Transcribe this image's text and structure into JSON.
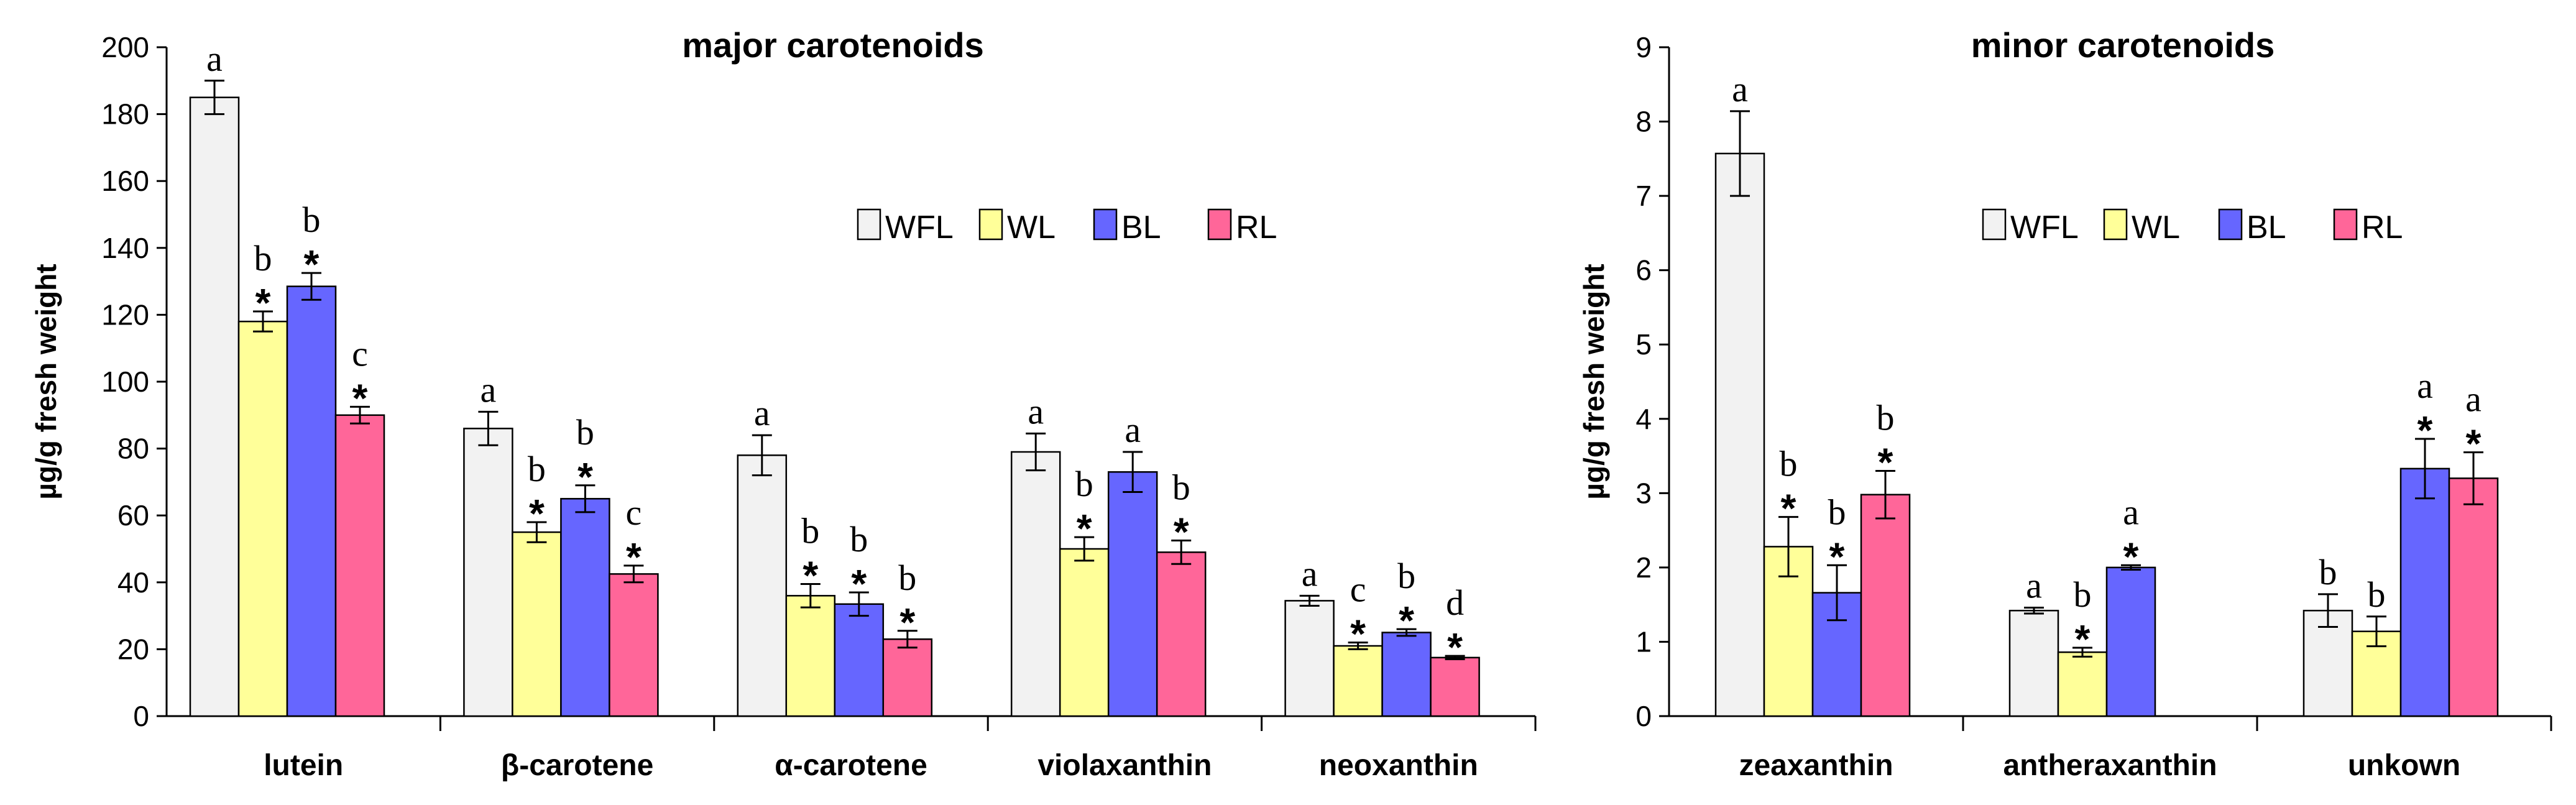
{
  "chart_data": [
    {
      "type": "bar",
      "title": "major carotenoids",
      "xlabel": "",
      "ylabel": "µg/g fresh weight",
      "ylim": [
        0,
        200
      ],
      "yticks": [
        "0",
        "20",
        "40",
        "60",
        "80",
        "100",
        "120",
        "140",
        "160",
        "180",
        "200"
      ],
      "legend_position": "top-right",
      "categories": [
        "lutein",
        "β-carotene",
        "α-carotene",
        "violaxanthin",
        "neoxanthin"
      ],
      "series": [
        {
          "name": "WFL",
          "color": "#f2f2f2",
          "values": [
            185,
            86,
            78,
            79,
            34.5
          ],
          "errors": [
            5,
            5,
            6,
            5.5,
            1.5
          ],
          "letters": [
            "a",
            "a",
            "a",
            "a",
            "a"
          ],
          "stars": [
            "",
            "",
            "",
            "",
            ""
          ]
        },
        {
          "name": "WL",
          "color": "#ffff99",
          "values": [
            118,
            55,
            36,
            50,
            21
          ],
          "errors": [
            3,
            3,
            3.5,
            3.5,
            1
          ],
          "letters": [
            "b",
            "b",
            "b",
            "b",
            "c"
          ],
          "stars": [
            "*",
            "*",
            "*",
            "*",
            "*"
          ]
        },
        {
          "name": "BL",
          "color": "#6666ff",
          "values": [
            128.5,
            65,
            33.5,
            73,
            25
          ],
          "errors": [
            4,
            4,
            3.5,
            6,
            1
          ],
          "letters": [
            "b",
            "b",
            "b",
            "a",
            "b"
          ],
          "stars": [
            "*",
            "*",
            "*",
            "",
            "*"
          ]
        },
        {
          "name": "RL",
          "color": "#ff6699",
          "values": [
            90,
            42.5,
            23,
            49,
            17.5
          ],
          "errors": [
            2.5,
            2.5,
            2.5,
            3.5,
            0.5
          ],
          "letters": [
            "c",
            "c",
            "b",
            "b",
            "d"
          ],
          "stars": [
            "*",
            "*",
            "*",
            "*",
            "*"
          ]
        }
      ]
    },
    {
      "type": "bar",
      "title": "minor carotenoids",
      "xlabel": "",
      "ylabel": "µg/g fresh weight",
      "ylim": [
        0,
        9
      ],
      "yticks": [
        "0",
        "1",
        "2",
        "3",
        "4",
        "5",
        "6",
        "7",
        "8",
        "9"
      ],
      "legend_position": "top-right",
      "categories": [
        "zeaxanthin",
        "antheraxanthin",
        "unkown"
      ],
      "series": [
        {
          "name": "WFL",
          "color": "#f2f2f2",
          "values": [
            7.57,
            1.42,
            1.42
          ],
          "errors": [
            0.57,
            0.04,
            0.22
          ],
          "letters": [
            "a",
            "a",
            "b"
          ],
          "stars": [
            "",
            "",
            ""
          ]
        },
        {
          "name": "WL",
          "color": "#ffff99",
          "values": [
            2.28,
            0.86,
            1.14
          ],
          "errors": [
            0.4,
            0.06,
            0.2
          ],
          "letters": [
            "b",
            "b",
            "b"
          ],
          "stars": [
            "*",
            "*",
            ""
          ]
        },
        {
          "name": "BL",
          "color": "#6666ff",
          "values": [
            1.66,
            2.0,
            3.33
          ],
          "errors": [
            0.37,
            0.03,
            0.4
          ],
          "letters": [
            "b",
            "a",
            "a"
          ],
          "stars": [
            "*",
            "*",
            "*"
          ]
        },
        {
          "name": "RL",
          "color": "#ff6699",
          "values": [
            2.98,
            null,
            3.2
          ],
          "errors": [
            0.32,
            null,
            0.35
          ],
          "letters": [
            "b",
            "",
            "a"
          ],
          "stars": [
            "*",
            "",
            "*"
          ]
        }
      ]
    }
  ]
}
